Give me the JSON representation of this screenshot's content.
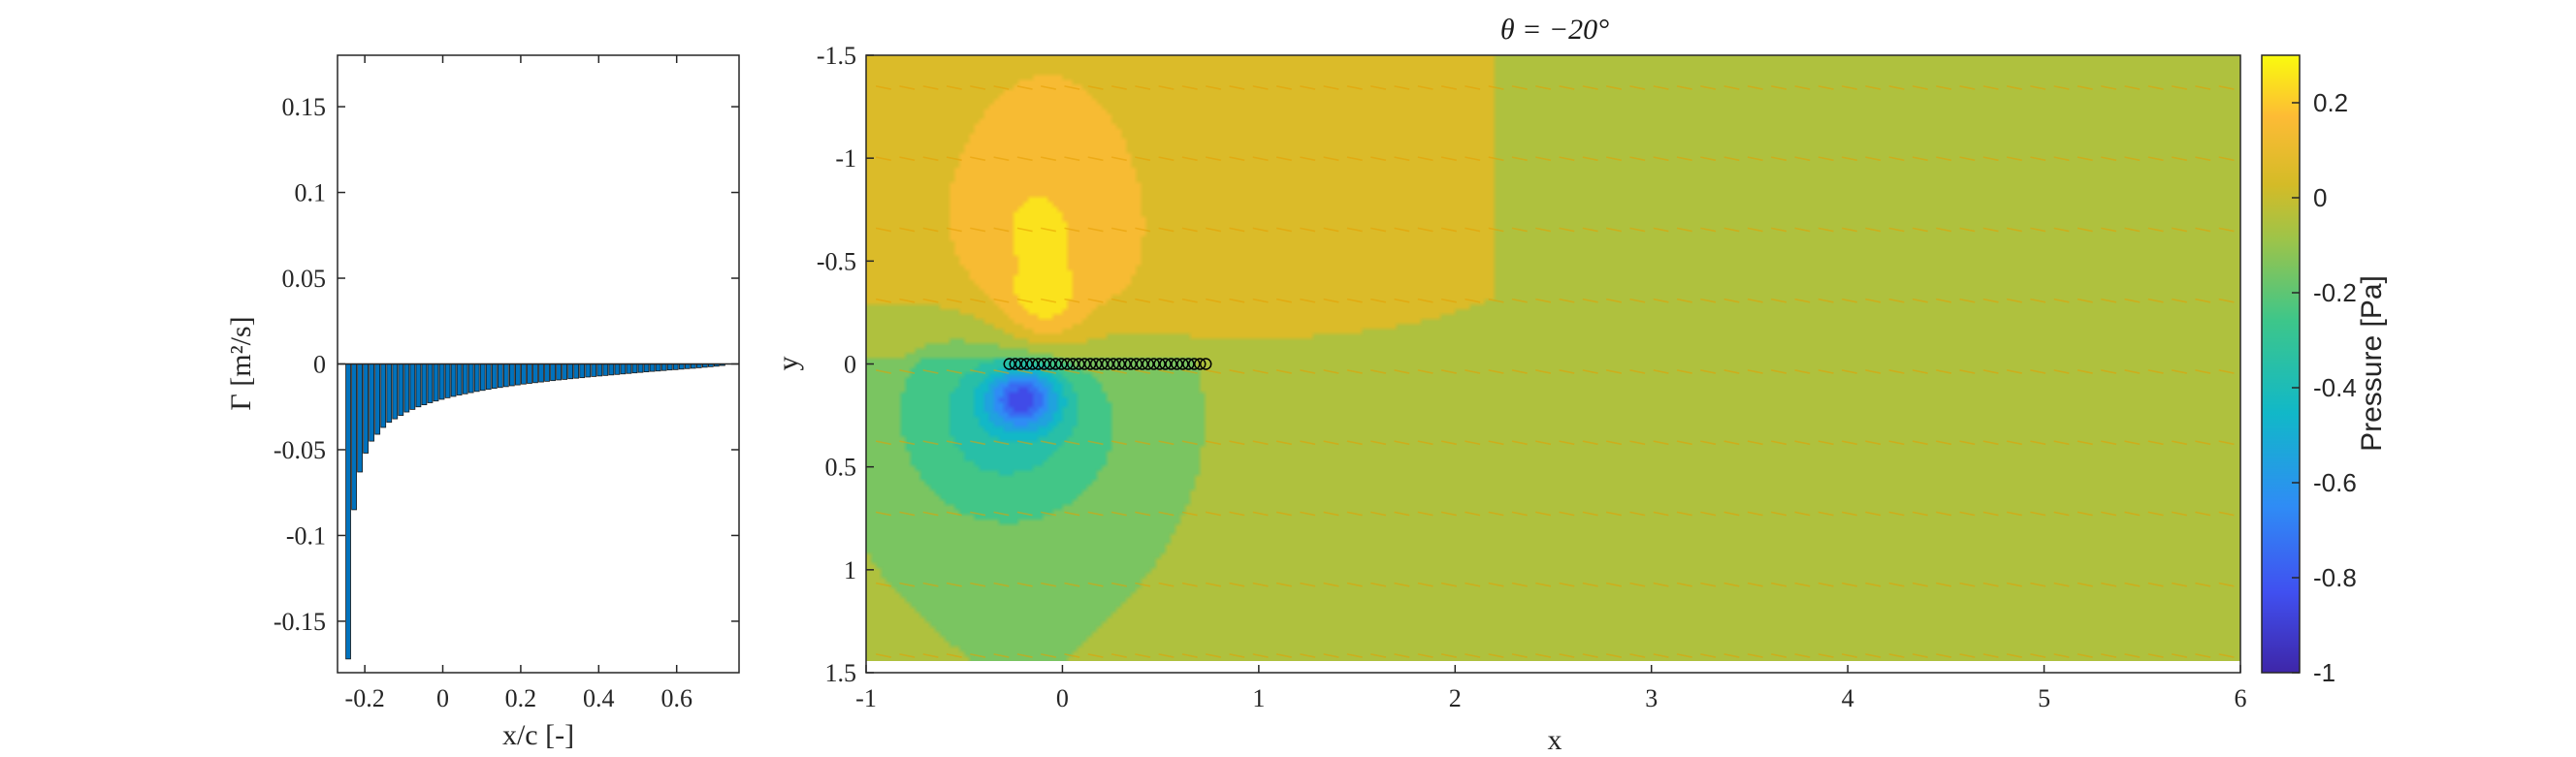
{
  "chart_data": [
    {
      "type": "bar",
      "xlabel": "x/c [-]",
      "ylabel": "Γ [m²/s]",
      "xlim": [
        -0.27,
        0.76
      ],
      "ylim": [
        -0.18,
        0.18
      ],
      "xticks": [
        -0.2,
        0,
        0.2,
        0.4,
        0.6
      ],
      "xtick_labels": [
        "-0.2",
        "0",
        "0.2",
        "0.4",
        "0.6"
      ],
      "yticks": [
        0.15,
        0.1,
        0.05,
        0,
        -0.05,
        -0.1,
        -0.15
      ],
      "ytick_labels": [
        "0.15",
        "0.1",
        "0.05",
        "0",
        "-0.05",
        "-0.1",
        "-0.15"
      ],
      "bar_color": "#0072BD",
      "x": [
        -0.2425,
        -0.2275,
        -0.2125,
        -0.1975,
        -0.1825,
        -0.1675,
        -0.1525,
        -0.1375,
        -0.1225,
        -0.1075,
        -0.0925,
        -0.0775,
        -0.0625,
        -0.0475,
        -0.0325,
        -0.0175,
        -0.0025,
        0.0125,
        0.0275,
        0.0425,
        0.0575,
        0.0725,
        0.0875,
        0.1025,
        0.1175,
        0.1325,
        0.1475,
        0.1625,
        0.1775,
        0.1925,
        0.2075,
        0.2225,
        0.2375,
        0.2525,
        0.2675,
        0.2825,
        0.2975,
        0.3125,
        0.3275,
        0.3425,
        0.3575,
        0.3725,
        0.3875,
        0.4025,
        0.4175,
        0.4325,
        0.4475,
        0.4625,
        0.4775,
        0.4925,
        0.5075,
        0.5225,
        0.5375,
        0.5525,
        0.5675,
        0.5825,
        0.5975,
        0.6125,
        0.6275,
        0.6425,
        0.6575,
        0.6725,
        0.6875,
        0.7025,
        0.7175
      ],
      "values": [
        -0.172,
        -0.085,
        -0.063,
        -0.052,
        -0.045,
        -0.041,
        -0.037,
        -0.034,
        -0.032,
        -0.03,
        -0.028,
        -0.0265,
        -0.025,
        -0.0238,
        -0.0226,
        -0.0216,
        -0.0206,
        -0.0197,
        -0.0189,
        -0.0181,
        -0.0174,
        -0.0167,
        -0.016,
        -0.0154,
        -0.0148,
        -0.0142,
        -0.0137,
        -0.0132,
        -0.0127,
        -0.0122,
        -0.0117,
        -0.0113,
        -0.0109,
        -0.0105,
        -0.0101,
        -0.0097,
        -0.0093,
        -0.009,
        -0.0086,
        -0.0083,
        -0.008,
        -0.0076,
        -0.0073,
        -0.007,
        -0.0067,
        -0.0064,
        -0.0061,
        -0.0058,
        -0.0055,
        -0.0052,
        -0.0049,
        -0.0046,
        -0.0043,
        -0.0041,
        -0.0038,
        -0.0035,
        -0.0033,
        -0.003,
        -0.0027,
        -0.0025,
        -0.0022,
        -0.0019,
        -0.0016,
        -0.0013,
        -0.0009
      ]
    },
    {
      "type": "heatmap",
      "title": "θ = −20°",
      "xlabel": "x",
      "ylabel": "y",
      "xlim": [
        -1,
        6
      ],
      "ylim": [
        -1.5,
        1.5
      ],
      "y_reversed": true,
      "xticks": [
        -1,
        0,
        1,
        2,
        3,
        4,
        5,
        6
      ],
      "xtick_labels": [
        "-1",
        "0",
        "1",
        "2",
        "3",
        "4",
        "5",
        "6"
      ],
      "yticks": [
        -1.5,
        -1,
        -0.5,
        0,
        0.5,
        1,
        1.5
      ],
      "ytick_labels": [
        "-1.5",
        "-1",
        "-0.5",
        "0",
        "0.5",
        "1",
        "1.5"
      ],
      "colorbar": {
        "label": "Pressure [Pa]",
        "range": [
          -1,
          0.3
        ],
        "ticks": [
          0.2,
          0,
          -0.2,
          -0.4,
          -0.6,
          -0.8,
          -1
        ],
        "tick_labels": [
          "0.2",
          "0",
          "-0.2",
          "-0.4",
          "-0.6",
          "-0.8",
          "-1"
        ]
      },
      "background_level": -0.02,
      "vortices": [
        {
          "x": -0.25,
          "y": 0.25,
          "strength": -0.35,
          "spread_x": 0.55,
          "spread_y": 0.55
        },
        {
          "x": -0.15,
          "y": -0.35,
          "strength": 0.2,
          "spread_x": 0.45,
          "spread_y": 0.8
        }
      ],
      "plate": {
        "x_start": -0.27,
        "x_end": 0.73,
        "y": 0,
        "points": 35
      },
      "quiver_color": "#E69F00"
    }
  ]
}
